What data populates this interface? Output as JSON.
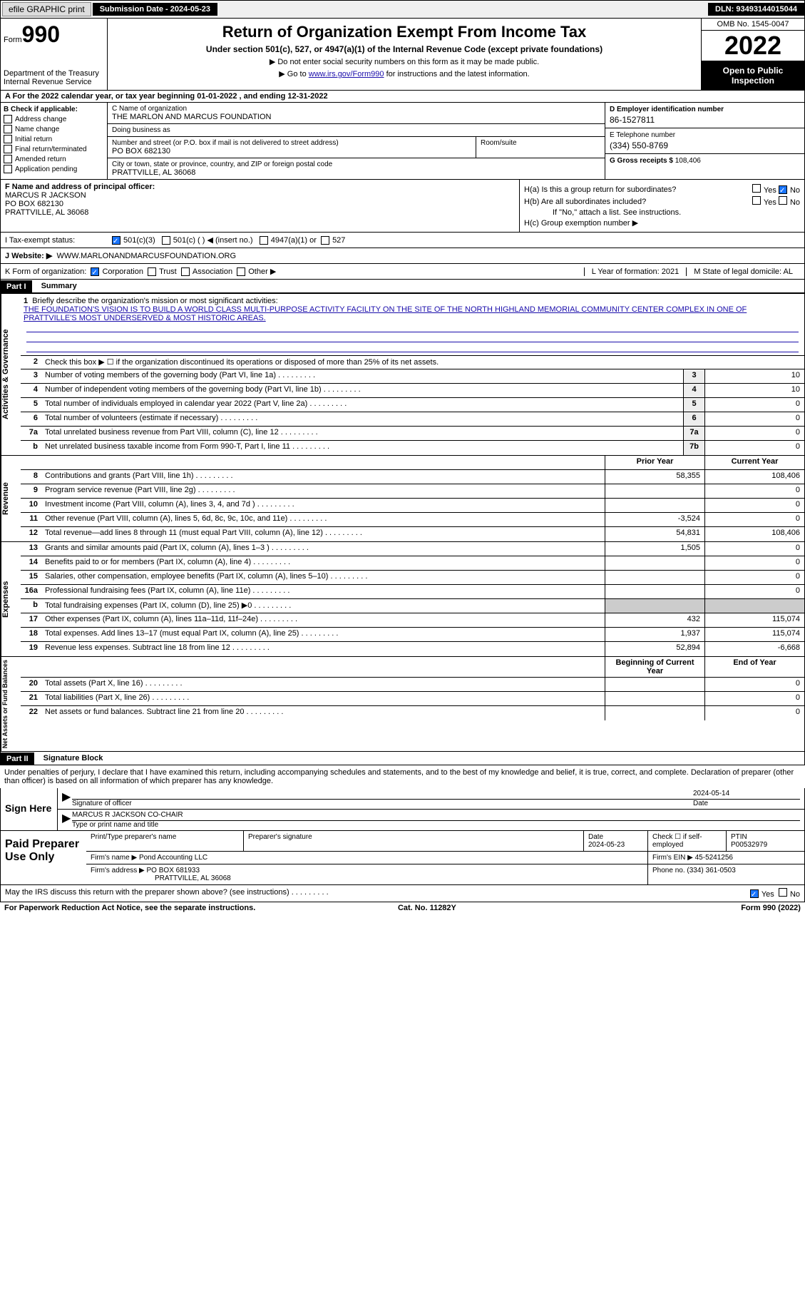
{
  "top": {
    "efile": "efile GRAPHIC print",
    "sub_date_label": "Submission Date - 2024-05-23",
    "dln": "DLN: 93493144015044"
  },
  "header": {
    "form_prefix": "Form",
    "form_num": "990",
    "dept": "Department of the Treasury\nInternal Revenue Service",
    "title": "Return of Organization Exempt From Income Tax",
    "subtitle": "Under section 501(c), 527, or 4947(a)(1) of the Internal Revenue Code (except private foundations)",
    "note1": "▶ Do not enter social security numbers on this form as it may be made public.",
    "note2_pre": "▶ Go to ",
    "note2_link": "www.irs.gov/Form990",
    "note2_post": " for instructions and the latest information.",
    "omb": "OMB No. 1545-0047",
    "year": "2022",
    "open": "Open to Public Inspection"
  },
  "row_a": "A For the 2022 calendar year, or tax year beginning 01-01-2022    , and ending 12-31-2022",
  "sec_b": {
    "label": "B Check if applicable:",
    "opts": [
      "Address change",
      "Name change",
      "Initial return",
      "Final return/terminated",
      "Amended return",
      "Application pending"
    ]
  },
  "sec_c": {
    "name_label": "C Name of organization",
    "name": "THE MARLON AND MARCUS FOUNDATION",
    "dba_label": "Doing business as",
    "dba": "",
    "addr_label": "Number and street (or P.O. box if mail is not delivered to street address)",
    "room_label": "Room/suite",
    "addr": "PO BOX 682130",
    "city_label": "City or town, state or province, country, and ZIP or foreign postal code",
    "city": "PRATTVILLE, AL  36068"
  },
  "sec_d": {
    "ein_label": "D Employer identification number",
    "ein": "86-1527811",
    "phone_label": "E Telephone number",
    "phone": "(334) 550-8769",
    "gross_label": "G Gross receipts $",
    "gross": "108,406"
  },
  "sec_f": {
    "label": "F Name and address of principal officer:",
    "name": "MARCUS R JACKSON",
    "addr1": "PO BOX 682130",
    "addr2": "PRATTVILLE, AL  36068"
  },
  "sec_h": {
    "ha": "H(a)  Is this a group return for subordinates?",
    "hb": "H(b)  Are all subordinates included?",
    "hb_note": "If \"No,\" attach a list. See instructions.",
    "hc": "H(c)  Group exemption number ▶",
    "yes": "Yes",
    "no": "No"
  },
  "row_i": {
    "label": "I    Tax-exempt status:",
    "o1": "501(c)(3)",
    "o2": "501(c) (  ) ◀ (insert no.)",
    "o3": "4947(a)(1) or",
    "o4": "527"
  },
  "row_j": {
    "label": "J   Website: ▶",
    "val": "WWW.MARLONANDMARCUSFOUNDATION.ORG"
  },
  "row_k": {
    "label": "K Form of organization:",
    "o1": "Corporation",
    "o2": "Trust",
    "o3": "Association",
    "o4": "Other ▶",
    "l": "L Year of formation: 2021",
    "m": "M State of legal domicile: AL"
  },
  "part1": {
    "hdr": "Part I",
    "title": "Summary",
    "l1": "Briefly describe the organization's mission or most significant activities:",
    "l1_text": "THE FOUNDATION'S VISION IS TO BUILD A WORLD CLASS MULTI-PURPOSE ACTIVITY FACILITY ON THE SITE OF THE NORTH HIGHLAND MEMORIAL COMMUNITY CENTER COMPLEX IN ONE OF PRATTVILLE'S MOST UNDERSERVED & MOST HISTORIC AREAS.",
    "l2": "Check this box ▶ ☐ if the organization discontinued its operations or disposed of more than 25% of its net assets.",
    "prior_hdr": "Prior Year",
    "curr_hdr": "Current Year",
    "begin_hdr": "Beginning of Current Year",
    "end_hdr": "End of Year"
  },
  "lines_gov": [
    {
      "n": "3",
      "d": "Number of voting members of the governing body (Part VI, line 1a)",
      "box": "3",
      "v": "10"
    },
    {
      "n": "4",
      "d": "Number of independent voting members of the governing body (Part VI, line 1b)",
      "box": "4",
      "v": "10"
    },
    {
      "n": "5",
      "d": "Total number of individuals employed in calendar year 2022 (Part V, line 2a)",
      "box": "5",
      "v": "0"
    },
    {
      "n": "6",
      "d": "Total number of volunteers (estimate if necessary)",
      "box": "6",
      "v": "0"
    },
    {
      "n": "7a",
      "d": "Total unrelated business revenue from Part VIII, column (C), line 12",
      "box": "7a",
      "v": "0"
    },
    {
      "n": "b",
      "d": "Net unrelated business taxable income from Form 990-T, Part I, line 11",
      "box": "7b",
      "v": "0"
    }
  ],
  "lines_rev": [
    {
      "n": "8",
      "d": "Contributions and grants (Part VIII, line 1h)",
      "p": "58,355",
      "c": "108,406"
    },
    {
      "n": "9",
      "d": "Program service revenue (Part VIII, line 2g)",
      "p": "",
      "c": "0"
    },
    {
      "n": "10",
      "d": "Investment income (Part VIII, column (A), lines 3, 4, and 7d )",
      "p": "",
      "c": "0"
    },
    {
      "n": "11",
      "d": "Other revenue (Part VIII, column (A), lines 5, 6d, 8c, 9c, 10c, and 11e)",
      "p": "-3,524",
      "c": "0"
    },
    {
      "n": "12",
      "d": "Total revenue—add lines 8 through 11 (must equal Part VIII, column (A), line 12)",
      "p": "54,831",
      "c": "108,406"
    }
  ],
  "lines_exp": [
    {
      "n": "13",
      "d": "Grants and similar amounts paid (Part IX, column (A), lines 1–3 )",
      "p": "1,505",
      "c": "0"
    },
    {
      "n": "14",
      "d": "Benefits paid to or for members (Part IX, column (A), line 4)",
      "p": "",
      "c": "0"
    },
    {
      "n": "15",
      "d": "Salaries, other compensation, employee benefits (Part IX, column (A), lines 5–10)",
      "p": "",
      "c": "0"
    },
    {
      "n": "16a",
      "d": "Professional fundraising fees (Part IX, column (A), line 11e)",
      "p": "",
      "c": "0"
    },
    {
      "n": "b",
      "d": "Total fundraising expenses (Part IX, column (D), line 25) ▶0",
      "p": "SHADED",
      "c": "SHADED"
    },
    {
      "n": "17",
      "d": "Other expenses (Part IX, column (A), lines 11a–11d, 11f–24e)",
      "p": "432",
      "c": "115,074"
    },
    {
      "n": "18",
      "d": "Total expenses. Add lines 13–17 (must equal Part IX, column (A), line 25)",
      "p": "1,937",
      "c": "115,074"
    },
    {
      "n": "19",
      "d": "Revenue less expenses. Subtract line 18 from line 12",
      "p": "52,894",
      "c": "-6,668"
    }
  ],
  "lines_net": [
    {
      "n": "20",
      "d": "Total assets (Part X, line 16)",
      "p": "",
      "c": "0"
    },
    {
      "n": "21",
      "d": "Total liabilities (Part X, line 26)",
      "p": "",
      "c": "0"
    },
    {
      "n": "22",
      "d": "Net assets or fund balances. Subtract line 21 from line 20",
      "p": "",
      "c": "0"
    }
  ],
  "part2": {
    "hdr": "Part II",
    "title": "Signature Block",
    "decl": "Under penalties of perjury, I declare that I have examined this return, including accompanying schedules and statements, and to the best of my knowledge and belief, it is true, correct, and complete. Declaration of preparer (other than officer) is based on all information of which preparer has any knowledge."
  },
  "sign": {
    "here": "Sign Here",
    "sig_label": "Signature of officer",
    "date": "2024-05-14",
    "date_label": "Date",
    "name": "MARCUS R JACKSON  CO-CHAIR",
    "name_label": "Type or print name and title"
  },
  "paid": {
    "label": "Paid Preparer Use Only",
    "h1": "Print/Type preparer's name",
    "h2": "Preparer's signature",
    "h3_label": "Date",
    "h3": "2024-05-23",
    "h4": "Check ☐ if self-employed",
    "h5_label": "PTIN",
    "h5": "P00532979",
    "firm_label": "Firm's name    ▶",
    "firm": "Pond Accounting LLC",
    "ein_label": "Firm's EIN ▶",
    "ein": "45-5241256",
    "addr_label": "Firm's address ▶",
    "addr1": "PO BOX 681933",
    "addr2": "PRATTVILLE, AL  36068",
    "phone_label": "Phone no.",
    "phone": "(334) 361-0503"
  },
  "footer": {
    "q": "May the IRS discuss this return with the preparer shown above? (see instructions)",
    "yes": "Yes",
    "no": "No",
    "pra": "For Paperwork Reduction Act Notice, see the separate instructions.",
    "cat": "Cat. No. 11282Y",
    "form": "Form 990 (2022)"
  },
  "side_labels": {
    "gov": "Activities & Governance",
    "rev": "Revenue",
    "exp": "Expenses",
    "net": "Net Assets or Fund Balances"
  }
}
